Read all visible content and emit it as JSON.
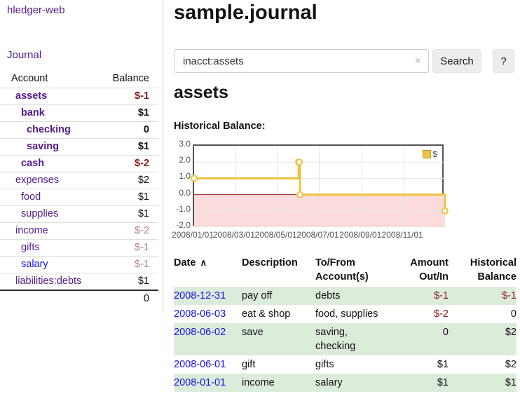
{
  "sidebar": {
    "brand": "hledger-web",
    "journal_label": "Journal",
    "accounts_header": {
      "account": "Account",
      "balance": "Balance"
    },
    "accounts": [
      {
        "name": "assets",
        "balance": "$-1"
      },
      {
        "name": "bank",
        "balance": "$1"
      },
      {
        "name": "checking",
        "balance": "0"
      },
      {
        "name": "saving",
        "balance": "$1"
      },
      {
        "name": "cash",
        "balance": "$-2"
      },
      {
        "name": "expenses",
        "balance": "$2"
      },
      {
        "name": "food",
        "balance": "$1"
      },
      {
        "name": "supplies",
        "balance": "$1"
      },
      {
        "name": "income",
        "balance": "$-2"
      },
      {
        "name": "gifts",
        "balance": "$-1"
      },
      {
        "name": "salary",
        "balance": "$-1"
      },
      {
        "name": "liabilities:debts",
        "balance": "$1"
      }
    ],
    "total": "0"
  },
  "header": {
    "title": "sample.journal"
  },
  "search": {
    "value": "inacct:assets",
    "clear_icon": "×",
    "search_label": "Search",
    "help_label": "?"
  },
  "register": {
    "heading": "assets",
    "chart_label": "Historical Balance:",
    "headers": {
      "date": "Date",
      "sort_indicator": "∧",
      "description": "Description",
      "accounts": "To/From Account(s)",
      "amount": "Amount Out/In",
      "balance": "Historical Balance"
    },
    "transactions": [
      {
        "date": "2008-12-31",
        "description": "pay off",
        "accounts": "debts",
        "amount": "$-1",
        "balance": "$-1"
      },
      {
        "date": "2008-06-03",
        "description": "eat & shop",
        "accounts": "food, supplies",
        "amount": "$-2",
        "balance": "0"
      },
      {
        "date": "2008-06-02",
        "description": "save",
        "accounts": "saving, checking",
        "amount": "0",
        "balance": "$2"
      },
      {
        "date": "2008-06-01",
        "description": "gift",
        "accounts": "gifts",
        "amount": "$1",
        "balance": "$2"
      },
      {
        "date": "2008-01-01",
        "description": "income",
        "accounts": "salary",
        "amount": "$1",
        "balance": "$1"
      }
    ]
  },
  "chart_data": {
    "type": "line",
    "title": "Historical Balance:",
    "step": true,
    "series": [
      {
        "name": "$",
        "points": [
          [
            "2008-01-01",
            1
          ],
          [
            "2008-06-01",
            2
          ],
          [
            "2008-06-02",
            2
          ],
          [
            "2008-06-03",
            0
          ],
          [
            "2008-12-31",
            -1
          ]
        ]
      }
    ],
    "x_range": [
      "2008-01-01",
      "2008-12-31"
    ],
    "x_ticks": [
      "2008/01/01",
      "2008/03/01",
      "2008/05/01",
      "2008/07/01",
      "2008/09/01",
      "2008/11/01"
    ],
    "y_ticks": [
      "3.0",
      "2.0",
      "1.0",
      "0.0",
      "-1.0",
      "-2.0"
    ],
    "ylim": [
      -2,
      3
    ],
    "grid": true,
    "legend_position": "top-right",
    "line_color": "#edc240",
    "marker_fill": "#ffffff",
    "negative_region_color": "#fbdbdb",
    "zero_line_color": "#9e2522",
    "grid_color": "#e6e6e6"
  }
}
